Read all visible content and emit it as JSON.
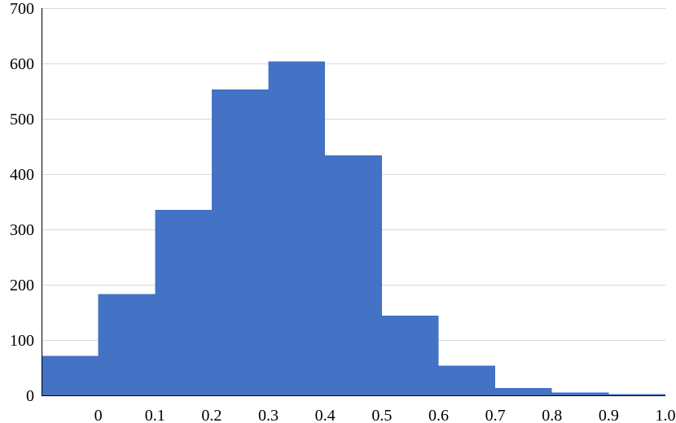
{
  "chart_data": {
    "type": "bar",
    "title": "",
    "xlabel": "",
    "ylabel": "",
    "bin_edges": [
      -0.1,
      0.0,
      0.1,
      0.2,
      0.3,
      0.4,
      0.5,
      0.6,
      0.7,
      0.8,
      0.9,
      1.0
    ],
    "values": [
      71,
      183,
      335,
      553,
      604,
      434,
      144,
      54,
      13,
      5,
      2
    ],
    "xlim": [
      -0.1,
      1.0
    ],
    "ylim": [
      0,
      700
    ],
    "x_tick_labels": [
      {
        "value": 0.0,
        "label": "0"
      },
      {
        "value": 0.1,
        "label": "0.1"
      },
      {
        "value": 0.2,
        "label": "0.2"
      },
      {
        "value": 0.3,
        "label": "0.3"
      },
      {
        "value": 0.4,
        "label": "0.4"
      },
      {
        "value": 0.5,
        "label": "0.5"
      },
      {
        "value": 0.6,
        "label": "0.6"
      },
      {
        "value": 0.7,
        "label": "0.7"
      },
      {
        "value": 0.8,
        "label": "0.8"
      },
      {
        "value": 0.9,
        "label": "0.9"
      },
      {
        "value": 1.0,
        "label": "1.0"
      }
    ],
    "y_tick_labels": [
      {
        "value": 0,
        "label": "0"
      },
      {
        "value": 100,
        "label": "100"
      },
      {
        "value": 200,
        "label": "200"
      },
      {
        "value": 300,
        "label": "300"
      },
      {
        "value": 400,
        "label": "400"
      },
      {
        "value": 500,
        "label": "500"
      },
      {
        "value": 600,
        "label": "600"
      },
      {
        "value": 700,
        "label": "700"
      }
    ],
    "grid": true,
    "bar_color": "#4472c4",
    "grid_color": "#d9d9d9"
  }
}
